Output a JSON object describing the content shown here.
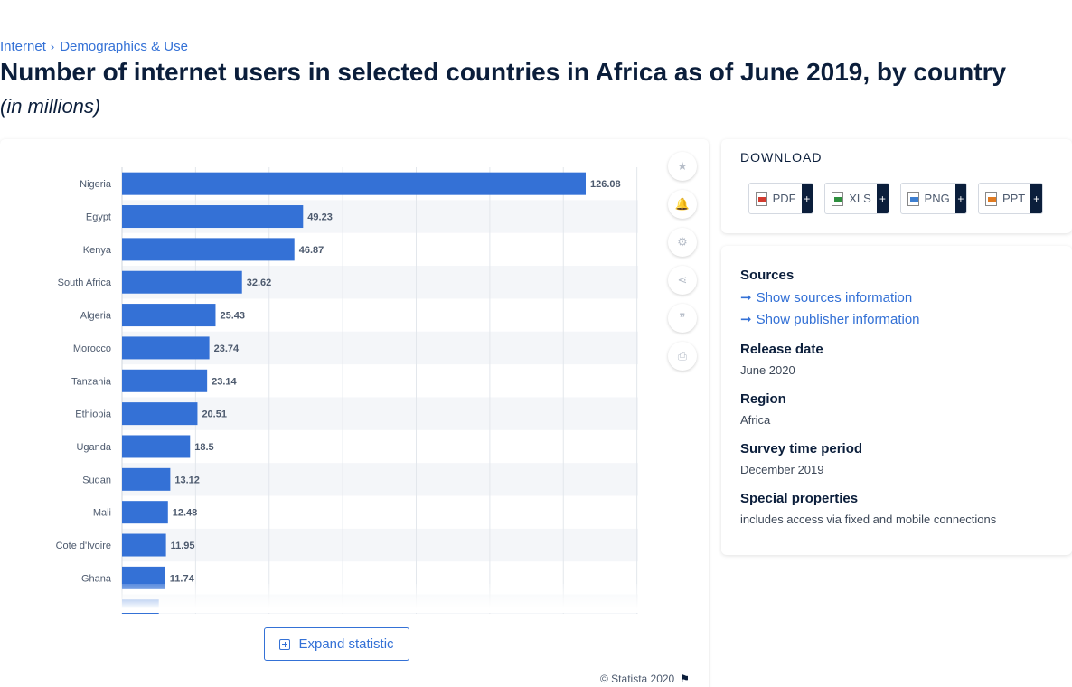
{
  "breadcrumb": {
    "items": [
      "Internet",
      "Demographics & Use"
    ],
    "separator": "›"
  },
  "title": "Number of internet users in selected countries in Africa as of June 2019, by country",
  "subtitle": "(in millions)",
  "chart_data": {
    "type": "bar",
    "orientation": "horizontal",
    "categories": [
      "Nigeria",
      "Egypt",
      "Kenya",
      "South Africa",
      "Algeria",
      "Morocco",
      "Tanzania",
      "Ethiopia",
      "Uganda",
      "Sudan",
      "Mali",
      "Cote d'Ivoire",
      "Ghana"
    ],
    "values": [
      126.08,
      49.23,
      46.87,
      32.62,
      25.43,
      23.74,
      23.14,
      20.51,
      18.5,
      13.12,
      12.48,
      11.95,
      11.74
    ],
    "partial_next_value": 10,
    "title": "",
    "xlabel": "",
    "ylabel": "",
    "xlim": [
      0,
      140
    ],
    "grid": true,
    "color": "#3471d6",
    "stripe_color": "#f4f6f9"
  },
  "tools": [
    {
      "name": "favorite-icon",
      "glyph": "★"
    },
    {
      "name": "notification-bell-icon",
      "glyph": "🔔"
    },
    {
      "name": "settings-gear-icon",
      "glyph": "⚙"
    },
    {
      "name": "share-icon",
      "glyph": "⋖"
    },
    {
      "name": "cite-quote-icon",
      "glyph": "❞"
    },
    {
      "name": "print-icon",
      "glyph": "⎙"
    }
  ],
  "expand_label": "Expand statistic",
  "copyright": "© Statista 2020",
  "download": {
    "heading": "DOWNLOAD",
    "buttons": [
      {
        "label": "PDF",
        "type": "pdf"
      },
      {
        "label": "XLS",
        "type": "xls"
      },
      {
        "label": "PNG",
        "type": "png"
      },
      {
        "label": "PPT",
        "type": "ppt"
      }
    ],
    "plus": "+"
  },
  "info": {
    "sources_heading": "Sources",
    "show_sources": "Show sources information",
    "show_publisher": "Show publisher information",
    "release_date_heading": "Release date",
    "release_date": "June 2020",
    "region_heading": "Region",
    "region": "Africa",
    "survey_heading": "Survey time period",
    "survey": "December 2019",
    "special_heading": "Special properties",
    "special": "includes access via fixed and mobile connections"
  }
}
